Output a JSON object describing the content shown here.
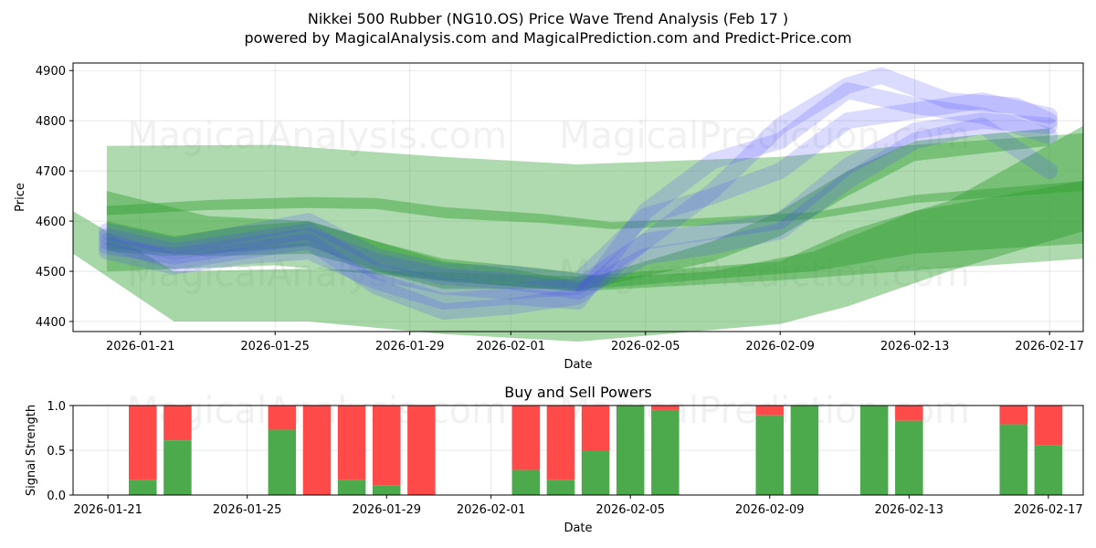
{
  "header": {
    "title": "Nikkei 500 Rubber (NG10.OS) Price Wave Trend Analysis (Feb 17 )",
    "subtitle": "powered by MagicalAnalysis.com and MagicalPrediction.com and Predict-Price.com"
  },
  "watermarks": [
    "MagicalAnalysis.com",
    "MagicalPrediction.com"
  ],
  "colors": {
    "green": "#2e9e2e",
    "blue": "#4a4aff",
    "buy": "#4caa4c",
    "sell": "#ff4a4a"
  },
  "chart_data": [
    {
      "type": "area",
      "title": "",
      "xlabel": "Date",
      "ylabel": "Price",
      "x_range": [
        "2026-01-19",
        "2026-02-18"
      ],
      "ylim": [
        4380,
        4915
      ],
      "x_ticks": [
        "2026-01-21",
        "2026-01-25",
        "2026-01-29",
        "2026-02-01",
        "2026-02-05",
        "2026-02-09",
        "2026-02-13",
        "2026-02-17"
      ],
      "y_ticks": [
        4400,
        4500,
        4600,
        4700,
        4800,
        4900
      ],
      "grid": true,
      "green_bands": [
        {
          "dates": [
            "2026-01-20",
            "2026-01-25",
            "2026-01-30",
            "2026-02-03",
            "2026-02-09",
            "2026-02-13",
            "2026-02-18"
          ],
          "upper": [
            4750,
            4752,
            4728,
            4713,
            4728,
            4752,
            4775
          ],
          "lower": [
            4500,
            4512,
            4482,
            4460,
            4482,
            4502,
            4525
          ]
        },
        {
          "dates": [
            "2026-01-19",
            "2026-01-22",
            "2026-01-26",
            "2026-01-30",
            "2026-02-03",
            "2026-02-09",
            "2026-02-11",
            "2026-02-14",
            "2026-02-18"
          ],
          "upper": [
            4620,
            4500,
            4505,
            4498,
            4490,
            4520,
            4580,
            4640,
            4790
          ],
          "lower": [
            4535,
            4400,
            4400,
            4375,
            4360,
            4395,
            4430,
            4500,
            4580
          ]
        },
        {
          "dates": [
            "2026-01-20",
            "2026-01-23",
            "2026-01-26",
            "2026-01-28",
            "2026-01-30",
            "2026-02-02",
            "2026-02-04",
            "2026-02-07",
            "2026-02-10",
            "2026-02-13",
            "2026-02-18"
          ],
          "upper": [
            4660,
            4610,
            4600,
            4560,
            4525,
            4505,
            4488,
            4500,
            4540,
            4620,
            4680
          ],
          "lower": [
            4545,
            4530,
            4535,
            4500,
            4465,
            4465,
            4468,
            4485,
            4500,
            4535,
            4555
          ]
        },
        {
          "dates": [
            "2026-01-20",
            "2026-01-23",
            "2026-01-26",
            "2026-01-28",
            "2026-01-30",
            "2026-02-02",
            "2026-02-04",
            "2026-02-07",
            "2026-02-10",
            "2026-02-13",
            "2026-02-18"
          ],
          "upper": [
            4630,
            4642,
            4648,
            4646,
            4628,
            4614,
            4598,
            4607,
            4618,
            4652,
            4680
          ],
          "lower": [
            4612,
            4622,
            4626,
            4624,
            4606,
            4596,
            4584,
            4592,
            4604,
            4636,
            4660
          ]
        },
        {
          "dates": [
            "2026-01-20",
            "2026-01-22",
            "2026-01-24",
            "2026-01-26",
            "2026-01-28",
            "2026-01-30",
            "2026-02-01",
            "2026-02-03",
            "2026-02-05",
            "2026-02-07",
            "2026-02-09",
            "2026-02-11",
            "2026-02-13",
            "2026-02-17"
          ],
          "upper": [
            4600,
            4570,
            4590,
            4600,
            4560,
            4520,
            4505,
            4480,
            4520,
            4560,
            4620,
            4700,
            4760,
            4785
          ],
          "lower": [
            4540,
            4530,
            4540,
            4550,
            4500,
            4480,
            4470,
            4460,
            4490,
            4520,
            4570,
            4650,
            4720,
            4750
          ]
        }
      ],
      "blue_waves": [
        {
          "dates": [
            "2026-01-20",
            "2026-01-22",
            "2026-01-24",
            "2026-01-26",
            "2026-01-28",
            "2026-01-30",
            "2026-02-01",
            "2026-02-03",
            "2026-02-05",
            "2026-02-07",
            "2026-02-09",
            "2026-02-11",
            "2026-02-12",
            "2026-02-14",
            "2026-02-16",
            "2026-02-17"
          ],
          "values": [
            4560,
            4520,
            4540,
            4560,
            4470,
            4420,
            4430,
            4450,
            4560,
            4660,
            4790,
            4870,
            4890,
            4840,
            4830,
            4800
          ]
        },
        {
          "dates": [
            "2026-01-20",
            "2026-01-22",
            "2026-01-24",
            "2026-01-26",
            "2026-01-28",
            "2026-01-30",
            "2026-02-01",
            "2026-02-03",
            "2026-02-05",
            "2026-02-07",
            "2026-02-09",
            "2026-02-11",
            "2026-02-13",
            "2026-02-15",
            "2026-02-17"
          ],
          "values": [
            4540,
            4510,
            4530,
            4540,
            4480,
            4440,
            4450,
            4440,
            4620,
            4720,
            4760,
            4860,
            4830,
            4810,
            4770
          ]
        },
        {
          "dates": [
            "2026-01-20",
            "2026-01-22",
            "2026-01-24",
            "2026-01-26",
            "2026-01-28",
            "2026-01-30",
            "2026-02-01",
            "2026-02-03",
            "2026-02-05",
            "2026-02-07",
            "2026-02-09",
            "2026-02-11",
            "2026-02-13",
            "2026-02-15",
            "2026-02-17"
          ],
          "values": [
            4570,
            4540,
            4560,
            4580,
            4500,
            4470,
            4460,
            4470,
            4560,
            4580,
            4600,
            4710,
            4780,
            4800,
            4790
          ]
        },
        {
          "dates": [
            "2026-01-20",
            "2026-01-22",
            "2026-01-24",
            "2026-01-26",
            "2026-01-28",
            "2026-01-30",
            "2026-02-01",
            "2026-02-03",
            "2026-02-05",
            "2026-02-07",
            "2026-02-09",
            "2026-02-11",
            "2026-02-13",
            "2026-02-15",
            "2026-02-17"
          ],
          "values": [
            4550,
            4530,
            4550,
            4570,
            4520,
            4490,
            4480,
            4460,
            4530,
            4550,
            4580,
            4680,
            4760,
            4790,
            4700
          ]
        },
        {
          "dates": [
            "2026-01-20",
            "2026-01-22",
            "2026-01-24",
            "2026-01-26",
            "2026-01-28",
            "2026-01-30",
            "2026-02-01",
            "2026-02-03",
            "2026-02-05",
            "2026-02-07",
            "2026-02-09",
            "2026-02-11",
            "2026-02-13",
            "2026-02-15",
            "2026-02-17"
          ],
          "values": [
            4580,
            4550,
            4575,
            4600,
            4530,
            4500,
            4495,
            4480,
            4610,
            4650,
            4700,
            4800,
            4820,
            4840,
            4810
          ]
        }
      ]
    },
    {
      "type": "bar",
      "title": "Buy and Sell Powers",
      "xlabel": "Date",
      "ylabel": "Signal Strength",
      "x_range": [
        "2026-01-20",
        "2026-02-18"
      ],
      "ylim": [
        0,
        1
      ],
      "y_ticks": [
        "0.0",
        "0.5",
        "1.0"
      ],
      "x_ticks": [
        "2026-01-21",
        "2026-01-25",
        "2026-01-29",
        "2026-02-01",
        "2026-02-05",
        "2026-02-09",
        "2026-02-13",
        "2026-02-17"
      ],
      "series": [
        {
          "name": "Buy",
          "color": "#4caa4c"
        },
        {
          "name": "Sell",
          "color": "#ff4a4a"
        }
      ],
      "bars": [
        {
          "date": "2026-01-22",
          "buy": 0.17
        },
        {
          "date": "2026-01-23",
          "buy": 0.61
        },
        {
          "date": "2026-01-26",
          "buy": 0.73
        },
        {
          "date": "2026-01-27",
          "buy": 0.0
        },
        {
          "date": "2026-01-28",
          "buy": 0.17
        },
        {
          "date": "2026-01-29",
          "buy": 0.11
        },
        {
          "date": "2026-01-30",
          "buy": 0.0
        },
        {
          "date": "2026-02-02",
          "buy": 0.28
        },
        {
          "date": "2026-02-03",
          "buy": 0.17
        },
        {
          "date": "2026-02-04",
          "buy": 0.5
        },
        {
          "date": "2026-02-05",
          "buy": 1.0
        },
        {
          "date": "2026-02-06",
          "buy": 0.95
        },
        {
          "date": "2026-02-09",
          "buy": 0.89
        },
        {
          "date": "2026-02-10",
          "buy": 1.0
        },
        {
          "date": "2026-02-12",
          "buy": 1.0
        },
        {
          "date": "2026-02-13",
          "buy": 0.83
        },
        {
          "date": "2026-02-16",
          "buy": 0.79
        },
        {
          "date": "2026-02-17",
          "buy": 0.56
        }
      ]
    }
  ]
}
